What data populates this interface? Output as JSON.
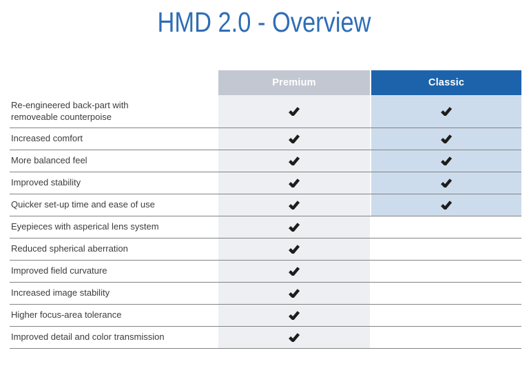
{
  "title": "HMD 2.0 - Overview",
  "colors": {
    "title_blue": "#2e6db5",
    "classic_header_blue": "#1c63ac",
    "premium_header_gray": "#c3c7d1",
    "premium_column_bg": "#edeff3",
    "classic_column_bg": "#cddcec",
    "row_divider": "#828282",
    "body_text": "#3c3c3b",
    "header_text": "#ffffff",
    "checkmark": "#1d1d1b"
  },
  "table": {
    "columns": [
      {
        "key": "premium",
        "label": "Premium"
      },
      {
        "key": "classic",
        "label": "Classic"
      }
    ],
    "rows": [
      {
        "label": "Re-engineered back-part with\nremoveable counterpoise",
        "premium": true,
        "classic": true
      },
      {
        "label": "Increased comfort",
        "premium": true,
        "classic": true
      },
      {
        "label": "More balanced feel",
        "premium": true,
        "classic": true
      },
      {
        "label": "Improved stability",
        "premium": true,
        "classic": true
      },
      {
        "label": "Quicker set-up time and ease of use",
        "premium": true,
        "classic": true
      },
      {
        "label": "Eyepieces with asperical lens system",
        "premium": true,
        "classic": false
      },
      {
        "label": "Reduced spherical aberration",
        "premium": true,
        "classic": false
      },
      {
        "label": "Improved field curvature",
        "premium": true,
        "classic": false
      },
      {
        "label": "Increased image stability",
        "premium": true,
        "classic": false
      },
      {
        "label": "Higher focus-area tolerance",
        "premium": true,
        "classic": false
      },
      {
        "label": "Improved detail and color transmission",
        "premium": true,
        "classic": false
      }
    ]
  }
}
